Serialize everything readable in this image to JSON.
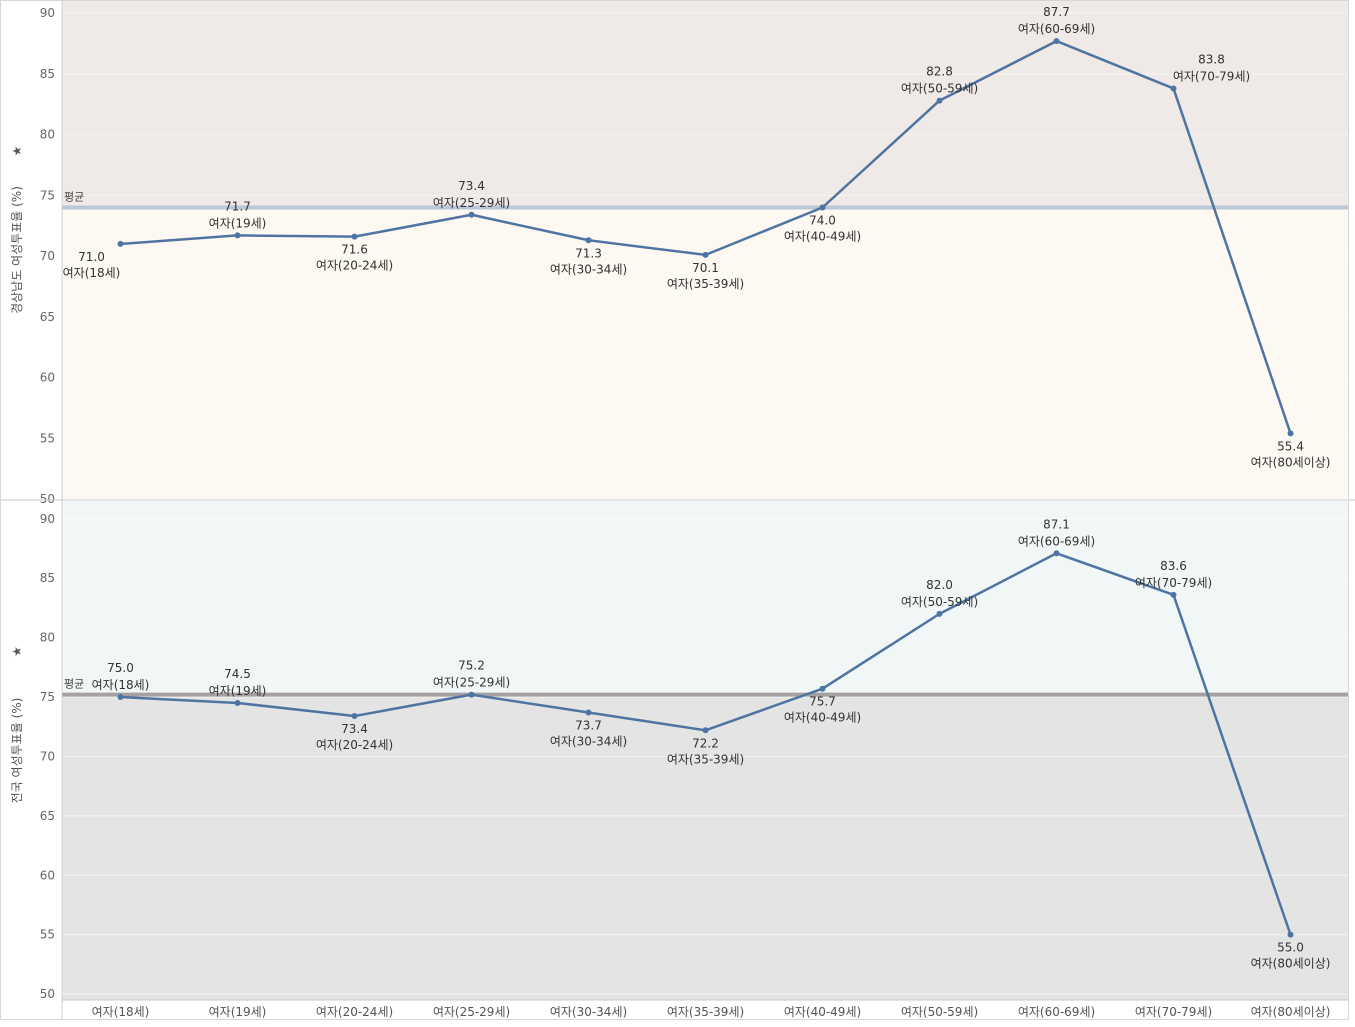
{
  "chart_data": [
    {
      "type": "line",
      "ylabel": "경상남도 여성투표율 (%)",
      "ylim": [
        50,
        91
      ],
      "yticks": [
        50,
        55,
        60,
        65,
        70,
        75,
        80,
        85,
        90
      ],
      "average": 74.0,
      "average_label": "평균",
      "band_above_color": "#efe9e7",
      "band_below_color": "#fdf8f1",
      "line_color": "#4e74a1",
      "avg_line_color": "#b9c7d6",
      "categories": [
        "여자(18세)",
        "여자(19세)",
        "여자(20-24세)",
        "여자(25-29세)",
        "여자(30-34세)",
        "여자(35-39세)",
        "여자(40-49세)",
        "여자(50-59세)",
        "여자(60-69세)",
        "여자(70-79세)",
        "여자(80세이상)"
      ],
      "values": [
        71.0,
        71.7,
        71.6,
        73.4,
        71.3,
        70.1,
        74.0,
        82.8,
        87.7,
        83.8,
        55.4
      ],
      "value_labels": [
        "71.0",
        "71.7",
        "71.6",
        "73.4",
        "71.3",
        "70.1",
        "74.0",
        "82.8",
        "87.7",
        "83.8",
        "55.4"
      ]
    },
    {
      "type": "line",
      "ylabel": "전국 여성투표율 (%)",
      "ylim": [
        49.5,
        91.5
      ],
      "yticks": [
        50,
        55,
        60,
        65,
        70,
        75,
        80,
        85,
        90
      ],
      "average": 75.2,
      "average_label": "평균",
      "band_above_color": "#f0f7f6",
      "band_below_color": "#e4e4e4",
      "line_color": "#4e74a1",
      "avg_line_color": "#a6a1a1",
      "categories": [
        "여자(18세)",
        "여자(19세)",
        "여자(20-24세)",
        "여자(25-29세)",
        "여자(30-34세)",
        "여자(35-39세)",
        "여자(40-49세)",
        "여자(50-59세)",
        "여자(60-69세)",
        "여자(70-79세)",
        "여자(80세이상)"
      ],
      "values": [
        75.0,
        74.5,
        73.4,
        75.2,
        73.7,
        72.2,
        75.7,
        82.0,
        87.1,
        83.6,
        55.0
      ],
      "value_labels": [
        "75.0",
        "74.5",
        "73.4",
        "75.2",
        "73.7",
        "72.2",
        "75.7",
        "82.0",
        "87.1",
        "83.6",
        "55.0"
      ]
    }
  ],
  "x_axis_labels": [
    "여자(18세)",
    "여자(19세)",
    "여자(20-24세)",
    "여자(25-29세)",
    "여자(30-34세)",
    "여자(35-39세)",
    "여자(40-49세)",
    "여자(50-59세)",
    "여자(60-69세)",
    "여자(70-79세)",
    "여자(80세이상)"
  ],
  "pin_icon": "pin-icon"
}
